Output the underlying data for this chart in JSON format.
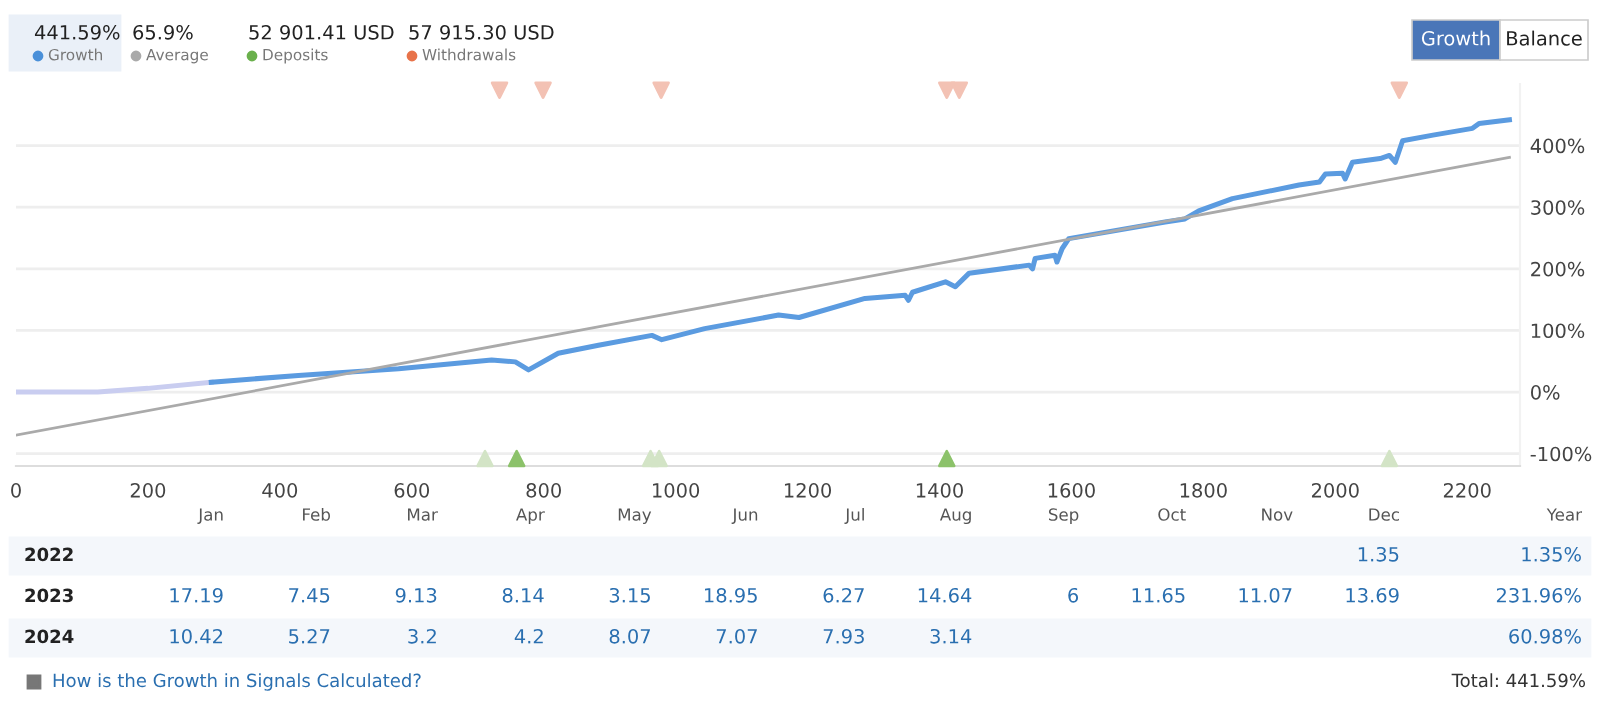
{
  "chart_data": [
    {
      "type": "other",
      "categories": [
        "Growth",
        "Average",
        "Deposits",
        "Withdrawals"
      ],
      "value_labels": [
        "441.59%",
        "65.9%",
        "52 901.41 USD",
        "57 915.30 USD"
      ],
      "colors": [
        "#4a90d9",
        "#aaaaaa",
        "#6ab04c",
        "#e8734a"
      ],
      "annotations": [
        "Growth",
        "Balance"
      ]
    },
    {
      "type": "line",
      "xlim": [
        0,
        2280
      ],
      "ylim": [
        -120,
        500
      ],
      "xticks": [
        0,
        200,
        400,
        600,
        800,
        1000,
        1200,
        1400,
        1600,
        1800,
        2000,
        2200
      ],
      "yticks": [
        {
          "value": -100,
          "label": "-100%"
        },
        {
          "value": 0,
          "label": "0%"
        },
        {
          "value": 100,
          "label": "100%"
        },
        {
          "value": 200,
          "label": "200%"
        },
        {
          "value": 300,
          "label": "300%"
        },
        {
          "value": 400,
          "label": "400%"
        }
      ],
      "grid": "y",
      "series": [
        {
          "color": "#c9cdf0",
          "x": [
            0,
            124,
            200,
            296
          ],
          "values": [
            0,
            0,
            6,
            16
          ]
        },
        {
          "color": "#5b9be0",
          "x": [
            296,
            428,
            580,
            721,
            757,
            777,
            822,
            883,
            964,
            979,
            1044,
            1156,
            1187,
            1287,
            1348,
            1353,
            1359,
            1409,
            1424,
            1445,
            1536,
            1541,
            1545,
            1575,
            1578,
            1586,
            1596,
            1742,
            1772,
            1793,
            1844,
            1945,
            1976,
            1985,
            2011,
            2015,
            2026,
            2068,
            2082,
            2091,
            2102,
            2148,
            2208,
            2218,
            2264
          ],
          "values": [
            16,
            27,
            38,
            52,
            49,
            36,
            63,
            76,
            92,
            85,
            103,
            125,
            121,
            152,
            157,
            149,
            162,
            179,
            171,
            193,
            206,
            200,
            217,
            222,
            211,
            233,
            249,
            276,
            281,
            294,
            314,
            336,
            341,
            354,
            355,
            346,
            373,
            379,
            384,
            373,
            408,
            417,
            428,
            436,
            442
          ]
        },
        {
          "color": "#aaaaaa",
          "x": [
            0,
            2264
          ],
          "values": [
            -70,
            381
          ]
        },
        {
          "type": "scatter",
          "marker": "triangle_down",
          "x": [
            733,
            799,
            978,
            1411,
            1430,
            2097
          ],
          "values": [
            490,
            490,
            490,
            490,
            490,
            490
          ],
          "colors": [
            "#f3c2b4",
            "#f3c2b4",
            "#f3c2b4",
            "#f3c2b4",
            "#f3c2b4",
            "#f3c2b4"
          ]
        },
        {
          "type": "scatter",
          "marker": "triangle",
          "x": [
            711,
            759,
            962,
            975,
            1411,
            2082
          ],
          "values": [
            -108,
            -108,
            -108,
            -108,
            -108,
            -108
          ],
          "colors": [
            "#d3e4c6",
            "#8cc26a",
            "#d3e4c6",
            "#d3e4c6",
            "#8cc26a",
            "#d3e4c6"
          ]
        }
      ]
    },
    {
      "type": "other",
      "categories": [
        "Jan",
        "Feb",
        "Mar",
        "Apr",
        "May",
        "Jun",
        "Jul",
        "Aug",
        "Sep",
        "Oct",
        "Nov",
        "Dec",
        "Year"
      ],
      "y_categories": [
        "2022",
        "2023",
        "2024"
      ],
      "cell_labels": [
        [
          null,
          null,
          null,
          null,
          null,
          null,
          null,
          null,
          null,
          null,
          null,
          "1.35",
          "1.35%"
        ],
        [
          "17.19",
          "7.45",
          "9.13",
          "8.14",
          "3.15",
          "18.95",
          "6.27",
          "14.64",
          "6",
          "11.65",
          "11.07",
          "13.69",
          "231.96%"
        ],
        [
          "10.42",
          "5.27",
          "3.2",
          "4.2",
          "8.07",
          "7.07",
          "7.93",
          "3.14",
          null,
          null,
          null,
          null,
          "60.98%"
        ]
      ],
      "annotations": [
        "How is the Growth in Signals Calculated?",
        "Total: 441.59%"
      ]
    }
  ]
}
